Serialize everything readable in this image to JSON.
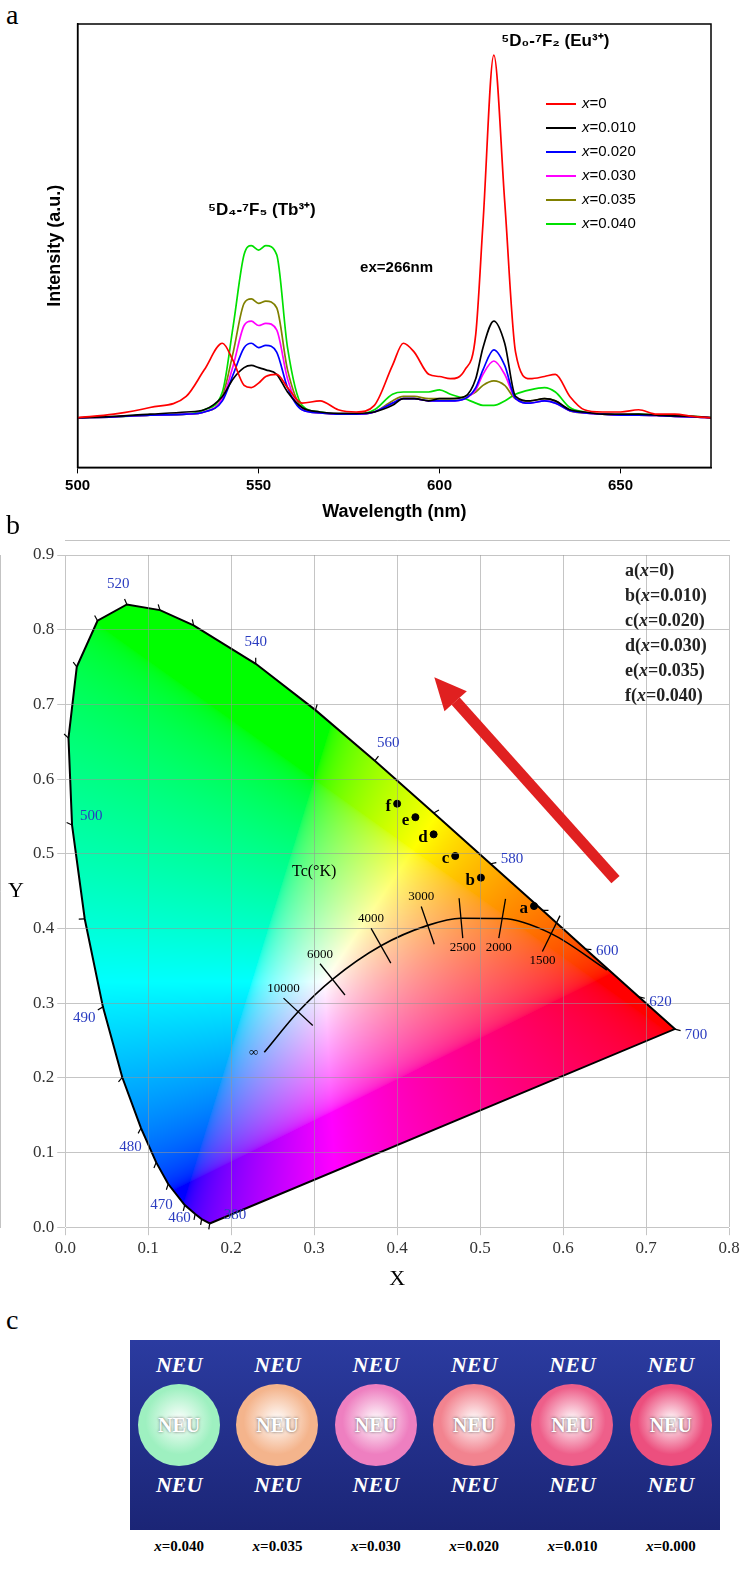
{
  "chart_data": [
    {
      "panel": "a",
      "type": "line",
      "x_label": "Wavelength (nm)",
      "y_label": "Intensity (a.u.)",
      "annotations": [
        "⁵D₄-⁷F₅ (Tb³⁺)",
        "⁵D₀-⁷F₂ (Eu³⁺)",
        "ex=266nm"
      ],
      "xlim": [
        500,
        675
      ],
      "xticks": [
        500,
        550,
        600,
        650
      ],
      "ylim": [
        0,
        100
      ],
      "tick_labels": "x",
      "legend": "upper right",
      "x": [
        500,
        510,
        520,
        530,
        535,
        540,
        543,
        546,
        548,
        550,
        552,
        555,
        558,
        562,
        567,
        572,
        577,
        582,
        587,
        590,
        593,
        597,
        600,
        603,
        607,
        610,
        612,
        615,
        618,
        621,
        625,
        629,
        632,
        636,
        640,
        645,
        650,
        655,
        660,
        665,
        670,
        675
      ],
      "series": [
        {
          "name": "x=0",
          "color": "#ff0000",
          "values": [
            11.2,
            12.0,
            13.5,
            16,
            22,
            28,
            24,
            18.5,
            18,
            19,
            20.5,
            21,
            18,
            14.5,
            15,
            13,
            12.5,
            14,
            23,
            28,
            26,
            21,
            20.5,
            20,
            22,
            30,
            55,
            93,
            60,
            26,
            20,
            20.5,
            21,
            16,
            13,
            12.5,
            12.5,
            13,
            12,
            12,
            11.5,
            11.2
          ]
        },
        {
          "name": "x=0.010",
          "color": "#000000",
          "values": [
            11.2,
            11.5,
            12,
            12.5,
            13,
            16,
            20,
            22.5,
            23,
            22.5,
            22,
            21,
            17,
            13.5,
            12.5,
            12.2,
            12.2,
            12.5,
            14,
            15.5,
            15.5,
            15,
            15.5,
            15.5,
            16,
            20,
            27,
            33,
            28,
            16,
            15,
            15.5,
            15,
            13,
            12.5,
            12,
            12,
            12,
            11.8,
            11.6,
            11.5,
            11.2
          ]
        },
        {
          "name": "x=0.020",
          "color": "#0000ff",
          "values": [
            11.2,
            11.4,
            11.8,
            12,
            12.5,
            15,
            21,
            27,
            28,
            27,
            27.5,
            26,
            18,
            13,
            12.3,
            12,
            12,
            12.5,
            14.5,
            15.5,
            15.5,
            15,
            15,
            15,
            15.5,
            18,
            22,
            26.5,
            23,
            15.5,
            14.5,
            15,
            14.5,
            12.8,
            12.3,
            12,
            11.8,
            11.8,
            11.7,
            11.5,
            11.4,
            11.2
          ]
        },
        {
          "name": "x=0.030",
          "color": "#ff00ff",
          "values": [
            11.2,
            11.4,
            11.8,
            12,
            12.5,
            15.5,
            23,
            32,
            33,
            32,
            32.5,
            31,
            20,
            13,
            12.3,
            12,
            12,
            12.5,
            14.5,
            15.5,
            15.5,
            15,
            15,
            15,
            15.5,
            17.5,
            21,
            24,
            21,
            15.5,
            14.5,
            15,
            14.5,
            12.8,
            12.3,
            12,
            11.8,
            11.8,
            11.7,
            11.5,
            11.4,
            11.2
          ]
        },
        {
          "name": "x=0.035",
          "color": "#808000",
          "values": [
            11.2,
            11.4,
            11.8,
            12,
            12.5,
            16,
            26,
            37,
            38,
            37,
            37.5,
            36,
            22,
            13.5,
            12.3,
            12,
            12,
            12.5,
            15,
            16,
            16,
            15.5,
            15.5,
            15.5,
            16,
            17,
            18.5,
            19.5,
            18.5,
            15.5,
            15,
            15.5,
            15,
            12.8,
            12.3,
            12,
            11.8,
            11.8,
            11.7,
            11.5,
            11.4,
            11.2
          ]
        },
        {
          "name": "x=0.040",
          "color": "#00e000",
          "values": [
            11.2,
            11.4,
            11.8,
            12,
            13,
            17,
            32,
            48,
            50,
            49,
            50,
            48,
            27,
            14,
            12.5,
            12,
            12,
            13,
            16.5,
            17,
            17,
            17,
            17.5,
            16.5,
            15.5,
            14.5,
            14,
            14,
            15,
            16.5,
            17.5,
            18,
            17,
            13.5,
            12.5,
            12,
            11.8,
            12,
            11.8,
            11.6,
            11.5,
            11.3
          ]
        }
      ]
    },
    {
      "panel": "b",
      "type": "scatter",
      "x_label": "X",
      "y_label": "Y",
      "xlim": [
        0,
        0.8
      ],
      "xticks": [
        {
          "value": 0,
          "label": "0.0"
        },
        0.1,
        0.2,
        0.3,
        0.4,
        0.5,
        0.6,
        0.7,
        0.8
      ],
      "ylim": [
        0,
        0.9
      ],
      "yticks": [
        {
          "value": 0,
          "label": "0.0"
        },
        0.1,
        0.2,
        0.3,
        0.4,
        0.5,
        0.6,
        0.7,
        0.8,
        0.9
      ],
      "grid": true,
      "legend": "upper right",
      "spectral_locus": {
        "x": [
          0.1741,
          0.1644,
          0.1566,
          0.144,
          0.1241,
          0.1096,
          0.0913,
          0.0687,
          0.0454,
          0.0235,
          0.0082,
          0.0039,
          0.0139,
          0.0389,
          0.0743,
          0.1142,
          0.1547,
          0.2296,
          0.3016,
          0.3731,
          0.4441,
          0.5125,
          0.5752,
          0.627,
          0.6915,
          0.7347
        ],
        "y": [
          0.005,
          0.0109,
          0.0177,
          0.0297,
          0.0578,
          0.0868,
          0.1327,
          0.2007,
          0.295,
          0.4127,
          0.5384,
          0.6548,
          0.7502,
          0.812,
          0.8338,
          0.8262,
          0.8059,
          0.7543,
          0.6923,
          0.6245,
          0.5547,
          0.4866,
          0.4242,
          0.3725,
          0.3083,
          0.2653
        ],
        "labels": [
          380,
          null,
          null,
          460,
          470,
          null,
          480,
          null,
          490,
          null,
          500,
          null,
          null,
          null,
          520,
          null,
          null,
          540,
          null,
          560,
          null,
          580,
          null,
          600,
          620,
          700
        ]
      },
      "planckian_locus": {
        "title": "Tc(°K)",
        "x": [
          0.2399,
          0.2807,
          0.3221,
          0.3805,
          0.4369,
          0.4769,
          0.5266,
          0.5857,
          0.6528
        ],
        "y": [
          0.2342,
          0.2884,
          0.3318,
          0.3768,
          0.4041,
          0.4137,
          0.4133,
          0.3931,
          0.3444
        ],
        "labels": [
          "∞",
          10000,
          6000,
          4000,
          3000,
          2500,
          2000,
          1500,
          null
        ]
      },
      "points": {
        "color": "#000000",
        "labels": [
          "a",
          "b",
          "c",
          "d",
          "e",
          "f"
        ],
        "names": [
          "a(x=0)",
          "b(x=0.010)",
          "c(x=0.020)",
          "d(x=0.030)",
          "e(x=0.035)",
          "f(x=0.040)"
        ],
        "x": [
          0.565,
          0.501,
          0.47,
          0.444,
          0.422,
          0.4
        ],
        "y": [
          0.43,
          0.468,
          0.497,
          0.526,
          0.549,
          0.567
        ]
      }
    }
  ],
  "panel_c": {
    "panel": "c",
    "samples": [
      {
        "caption": "x=0.040",
        "top": "NEU",
        "center": "NEU",
        "bottom": "NEU",
        "color": "#9ef0c0"
      },
      {
        "caption": "x=0.035",
        "top": "NEU",
        "center": "NEU",
        "bottom": "NEU",
        "color": "#f4b48c"
      },
      {
        "caption": "x=0.030",
        "top": "NEU",
        "center": "NEU",
        "bottom": "NEU",
        "color": "#ee7fc0"
      },
      {
        "caption": "x=0.020",
        "top": "NEU",
        "center": "NEU",
        "bottom": "NEU",
        "color": "#f2838f"
      },
      {
        "caption": "x=0.010",
        "top": "NEU",
        "center": "NEU",
        "bottom": "NEU",
        "color": "#ee5f8a"
      },
      {
        "caption": "x=0.000",
        "top": "NEU",
        "center": "NEU",
        "bottom": "NEU",
        "color": "#ec4f7e"
      }
    ]
  }
}
